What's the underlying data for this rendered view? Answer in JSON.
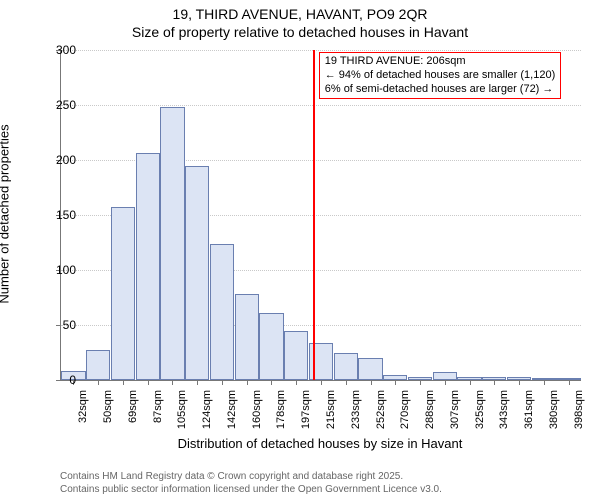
{
  "title": {
    "main": "19, THIRD AVENUE, HAVANT, PO9 2QR",
    "sub": "Size of property relative to detached houses in Havant"
  },
  "chart": {
    "type": "histogram",
    "ylabel": "Number of detached properties",
    "xlabel": "Distribution of detached houses by size in Havant",
    "ylim_max": 300,
    "ytick_step": 50,
    "yticks": [
      0,
      50,
      100,
      150,
      200,
      250,
      300
    ],
    "bar_fill": "#dce4f4",
    "bar_stroke": "#6a7fb0",
    "grid_color": "#c9c9c9",
    "vline_color": "#ff0000",
    "vline_at_sqm": 206,
    "categories": [
      "32sqm",
      "50sqm",
      "69sqm",
      "87sqm",
      "105sqm",
      "124sqm",
      "142sqm",
      "160sqm",
      "178sqm",
      "197sqm",
      "215sqm",
      "233sqm",
      "252sqm",
      "270sqm",
      "288sqm",
      "307sqm",
      "325sqm",
      "343sqm",
      "361sqm",
      "380sqm",
      "398sqm"
    ],
    "values": [
      8,
      27,
      157,
      206,
      248,
      195,
      124,
      78,
      61,
      45,
      34,
      25,
      20,
      5,
      3,
      7,
      3,
      3,
      3,
      2,
      2
    ],
    "annotation": {
      "line1": "19 THIRD AVENUE: 206sqm",
      "line2": "← 94% of detached houses are smaller (1,120)",
      "line3": "6% of semi-detached houses are larger (72) →"
    }
  },
  "footer": {
    "line1": "Contains HM Land Registry data © Crown copyright and database right 2025.",
    "line2": "Contains public sector information licensed under the Open Government Licence v3.0."
  }
}
